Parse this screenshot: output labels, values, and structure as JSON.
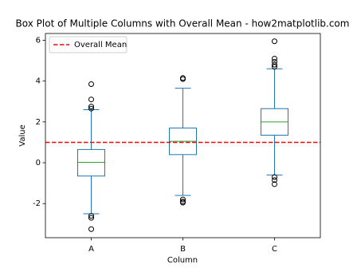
{
  "chart_data": {
    "type": "box",
    "title": "Box Plot of Multiple Columns with Overall Mean - how2matplotlib.com",
    "x_label": "Column",
    "y_label": "Value",
    "categories": [
      "A",
      "B",
      "C"
    ],
    "boxes": [
      {
        "whisker_low": -2.5,
        "q1": -0.65,
        "median": 0.02,
        "q3": 0.65,
        "whisker_high": 2.6,
        "outliers": [
          3.85,
          3.1,
          2.75,
          2.65,
          -2.6,
          -2.7,
          -3.25
        ]
      },
      {
        "whisker_low": -1.6,
        "q1": 0.4,
        "median": 1.05,
        "q3": 1.7,
        "whisker_high": 3.65,
        "outliers": [
          4.15,
          4.1,
          -1.8,
          -1.9,
          -1.95
        ]
      },
      {
        "whisker_low": -0.6,
        "q1": 1.35,
        "median": 2.0,
        "q3": 2.65,
        "whisker_high": 4.6,
        "outliers": [
          5.95,
          5.1,
          4.95,
          4.8,
          4.7,
          -0.7,
          -0.85,
          -1.05
        ]
      }
    ],
    "box_color": "#1f77b4",
    "median_color": "#2ca02c",
    "mean_line": {
      "label": "Overall Mean",
      "value": 1.0,
      "color": "#ff0000"
    },
    "legend": "upper left",
    "ylim": [
      -3.67,
      6.33
    ],
    "yticks": [
      -2,
      0,
      2,
      4,
      6
    ],
    "grid": false
  }
}
